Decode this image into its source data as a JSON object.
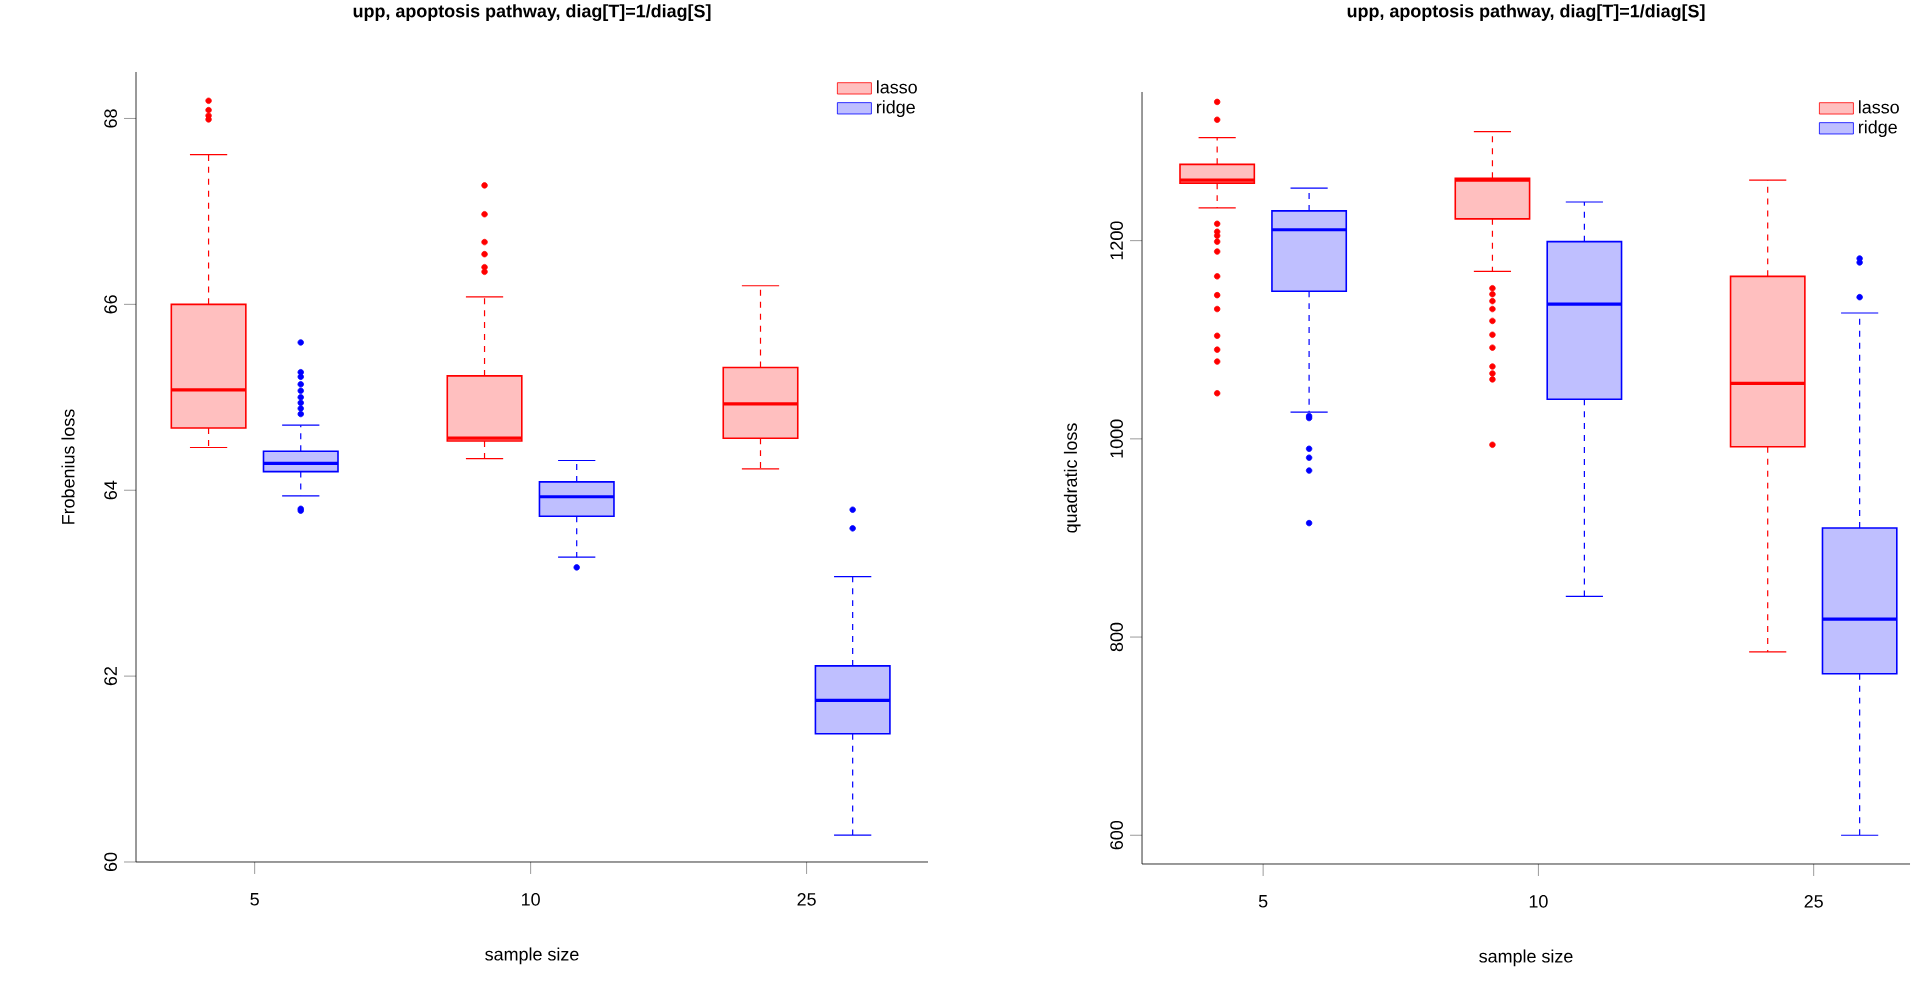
{
  "chart_data": [
    {
      "type": "box",
      "title": "upp, apoptosis pathway, diag[T]=1/diag[S]",
      "xlabel": "sample size",
      "ylabel": "Frobenius loss",
      "categories": [
        "5",
        "10",
        "25"
      ],
      "ylim": [
        60,
        68.5
      ],
      "yticks": [
        60,
        62,
        64,
        66,
        68
      ],
      "legend": "top right",
      "series": [
        {
          "name": "lasso",
          "color": "#ff0000",
          "boxes": [
            {
              "low": 64.46,
              "q1": 64.67,
              "median": 65.08,
              "q3": 66.0,
              "high": 67.61,
              "outliers": [
                68.19,
                68.09,
                68.03,
                67.99
              ]
            },
            {
              "low": 64.34,
              "q1": 64.53,
              "median": 64.56,
              "q3": 65.23,
              "high": 66.08,
              "outliers": [
                67.28,
                66.97,
                66.67,
                66.54,
                66.4,
                66.35
              ]
            },
            {
              "low": 64.23,
              "q1": 64.56,
              "median": 64.93,
              "q3": 65.32,
              "high": 66.2
            }
          ]
        },
        {
          "name": "ridge",
          "color": "#0000ff",
          "boxes": [
            {
              "low": 63.94,
              "q1": 64.2,
              "median": 64.29,
              "q3": 64.42,
              "high": 64.7,
              "outliers": [
                63.8,
                63.78,
                65.59,
                65.27,
                65.22,
                65.14,
                65.07,
                65.0,
                64.94,
                64.88,
                64.82
              ]
            },
            {
              "low": 63.28,
              "q1": 63.72,
              "median": 63.93,
              "q3": 64.09,
              "high": 64.32,
              "outliers": [
                63.17
              ]
            },
            {
              "low": 60.29,
              "q1": 61.38,
              "median": 61.74,
              "q3": 62.11,
              "high": 63.07,
              "outliers": [
                63.79,
                63.59
              ]
            }
          ]
        }
      ]
    },
    {
      "type": "box",
      "title": "upp, apoptosis pathway, diag[T]=1/diag[S]",
      "xlabel": "sample size",
      "ylabel": "quadratic loss",
      "categories": [
        "5",
        "10",
        "25"
      ],
      "ylim": [
        571,
        1350
      ],
      "yticks": [
        600,
        800,
        1000,
        1200
      ],
      "legend": "top right",
      "series": [
        {
          "name": "lasso",
          "color": "#ff0000",
          "boxes": [
            {
              "low": 1233,
              "q1": 1258,
              "median": 1261,
              "q3": 1277,
              "high": 1304,
              "outliers": [
                1340,
                1322,
                1217,
                1209,
                1205,
                1199,
                1189,
                1164,
                1145,
                1131,
                1104,
                1090,
                1078,
                1046
              ]
            },
            {
              "low": 1169,
              "q1": 1222,
              "median": 1261,
              "q3": 1263,
              "high": 1310,
              "outliers": [
                1152,
                1146,
                1139,
                1131,
                1119,
                1105,
                1092,
                1073,
                1066,
                1060,
                994
              ]
            },
            {
              "low": 785,
              "q1": 992,
              "median": 1056,
              "q3": 1164,
              "high": 1261
            }
          ]
        },
        {
          "name": "ridge",
          "color": "#0000ff",
          "boxes": [
            {
              "low": 1027,
              "q1": 1149,
              "median": 1211,
              "q3": 1230,
              "high": 1253,
              "outliers": [
                1021,
                1023,
                990,
                981,
                968,
                915
              ]
            },
            {
              "low": 841,
              "q1": 1040,
              "median": 1136,
              "q3": 1199,
              "high": 1239
            },
            {
              "low": 600,
              "q1": 763,
              "median": 818,
              "q3": 910,
              "high": 1127,
              "outliers": [
                1182,
                1178,
                1143
              ]
            }
          ]
        }
      ]
    }
  ]
}
